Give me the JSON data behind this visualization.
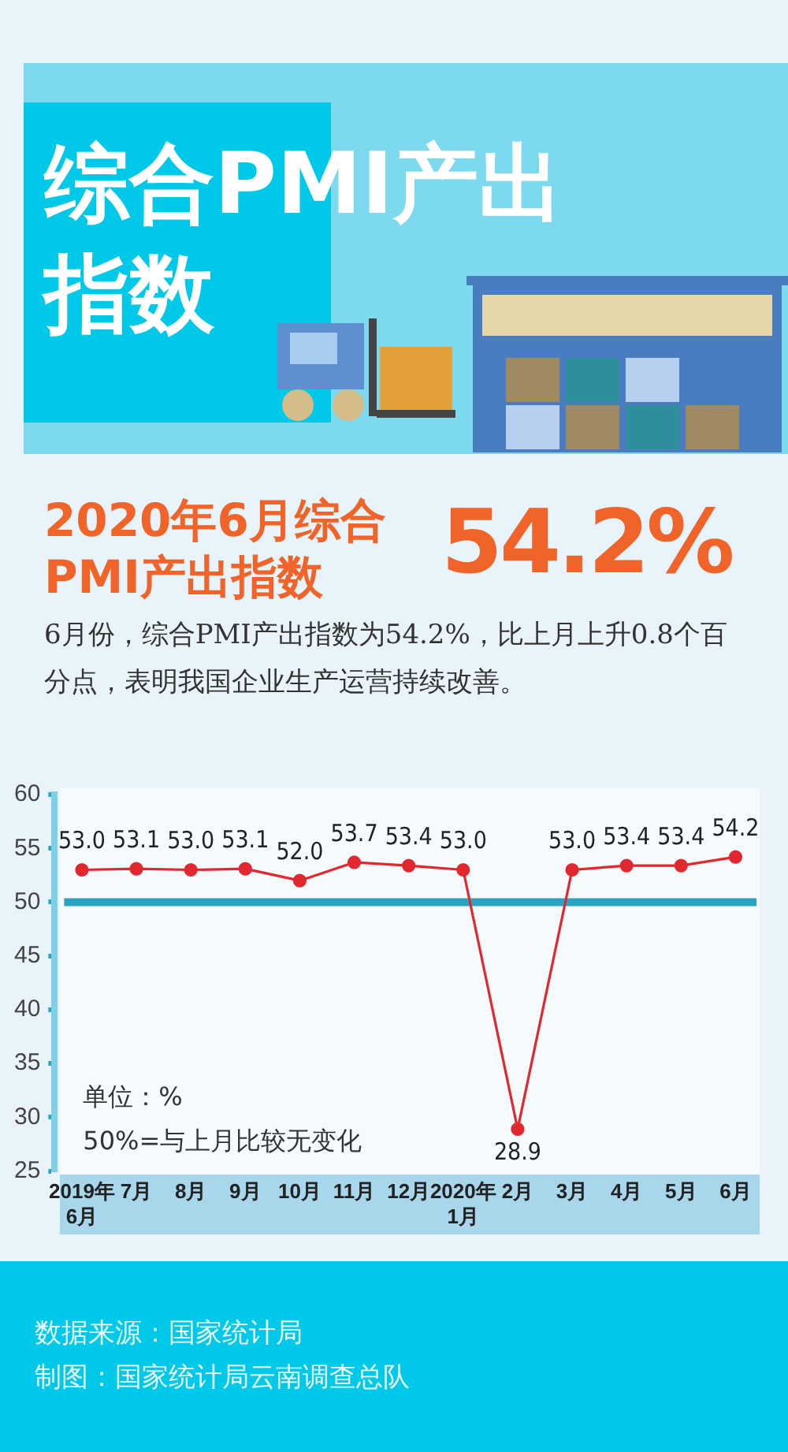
{
  "chart_data": {
    "type": "line",
    "title": "综合PMI产出指数",
    "subtitle": "2020年6月综合PMI产出指数",
    "categories": [
      "2019年\n6月",
      "7月",
      "8月",
      "9月",
      "10月",
      "11月",
      "12月",
      "2020年\n1月",
      "2月",
      "3月",
      "4月",
      "5月",
      "6月"
    ],
    "series": [
      {
        "color": "#e0282e",
        "values": [
          53.0,
          53.1,
          53.0,
          53.1,
          52.0,
          53.7,
          53.4,
          53.0,
          28.9,
          53.0,
          53.4,
          53.4,
          54.2
        ],
        "value_labels": [
          "53.0",
          "53.1",
          "53.0",
          "53.1",
          "52.0",
          "53.7",
          "53.4",
          "53.0",
          "28.9",
          "53.0",
          "53.4",
          "53.4",
          "54.2"
        ]
      }
    ],
    "ylim": [
      25,
      60
    ],
    "yticks": [
      25,
      30,
      35,
      40,
      45,
      50,
      55,
      60
    ],
    "ref_lines": [
      {
        "axis": "y",
        "value": 50,
        "label": null,
        "color": "#2aa3c0"
      }
    ],
    "marker": "circle",
    "annotations": [
      "54.2%",
      "6月份，综合PMI产出指数为54.2%，比上月上升0.8个百分点，表明我国企业生产运营持续改善。",
      "单位：%",
      "50%=与上月比较无变化",
      "数据来源：国家统计局",
      "制图：国家统计局云南调查总队"
    ]
  }
}
